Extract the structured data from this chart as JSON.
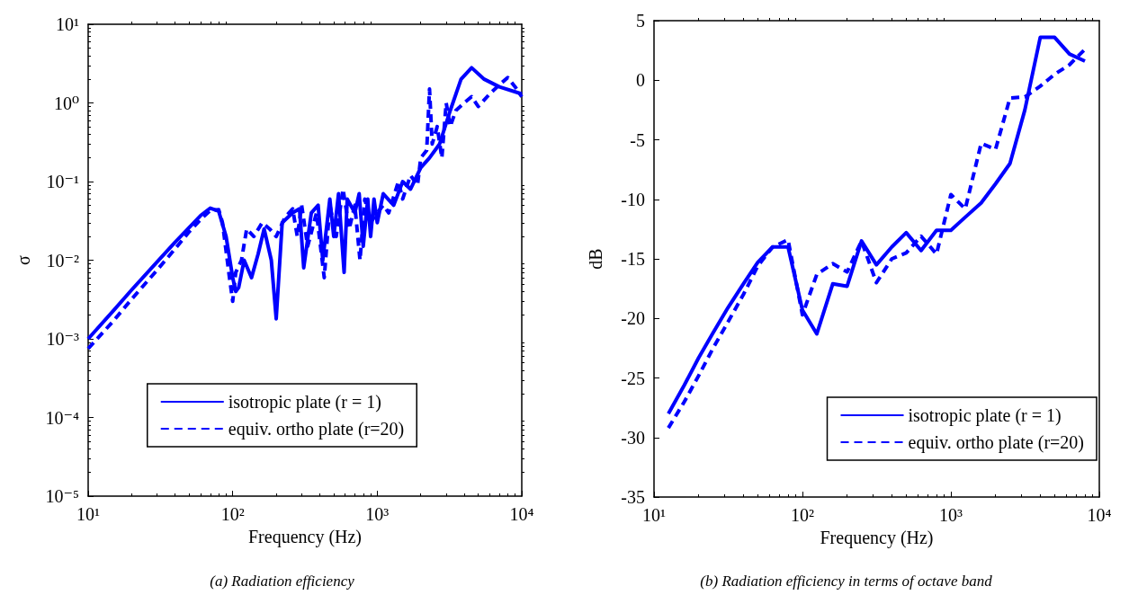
{
  "chart_data": [
    {
      "type": "line",
      "title": "(a) Radiation efficiency",
      "xlabel": "Frequency (Hz)",
      "ylabel": "σ",
      "log": "xy",
      "grid": false,
      "legend": "bottom",
      "marker": "none",
      "xlim": [
        10,
        10000
      ],
      "xticks": [
        {
          "value": 10,
          "label": "10¹"
        },
        {
          "value": 100,
          "label": "10²"
        },
        {
          "value": 1000,
          "label": "10³"
        },
        {
          "value": 10000,
          "label": "10⁴"
        }
      ],
      "ylim": [
        1e-05,
        10
      ],
      "yticks": [
        {
          "value": 1e-05,
          "label": "10⁻⁵"
        },
        {
          "value": 0.0001,
          "label": "10⁻⁴"
        },
        {
          "value": 0.001,
          "label": "10⁻³"
        },
        {
          "value": 0.01,
          "label": "10⁻²"
        },
        {
          "value": 0.1,
          "label": "10⁻¹"
        },
        {
          "value": 1,
          "label": "10⁰"
        },
        {
          "value": 10,
          "label": "10¹"
        }
      ],
      "series": [
        {
          "name": "isotropic plate (r = 1)",
          "color": "#0000ff",
          "line_style": "solid",
          "x": [
            10,
            15,
            20,
            30,
            40,
            50,
            60,
            70,
            80,
            90,
            100,
            105,
            110,
            120,
            135,
            150,
            165,
            185,
            200,
            220,
            260,
            290,
            310,
            350,
            390,
            420,
            470,
            500,
            540,
            590,
            620,
            700,
            750,
            800,
            860,
            900,
            950,
            1000,
            1100,
            1300,
            1500,
            1700,
            2000,
            2300,
            2700,
            3200,
            3800,
            4500,
            5500,
            7000,
            10000
          ],
          "values": [
            0.001,
            0.0023,
            0.0042,
            0.0095,
            0.017,
            0.026,
            0.037,
            0.046,
            0.042,
            0.02,
            0.006,
            0.004,
            0.0045,
            0.01,
            0.006,
            0.012,
            0.025,
            0.01,
            0.0018,
            0.03,
            0.04,
            0.045,
            0.008,
            0.04,
            0.05,
            0.01,
            0.06,
            0.02,
            0.07,
            0.007,
            0.06,
            0.04,
            0.07,
            0.015,
            0.06,
            0.02,
            0.06,
            0.03,
            0.07,
            0.05,
            0.1,
            0.08,
            0.15,
            0.2,
            0.3,
            0.8,
            2,
            2.8,
            2,
            1.6,
            1.3
          ]
        },
        {
          "name": "equiv. ortho plate (r=20)",
          "color": "#0000ff",
          "line_style": "dashed",
          "x": [
            10,
            15,
            20,
            30,
            40,
            50,
            60,
            70,
            80,
            85,
            95,
            100,
            105,
            115,
            125,
            140,
            160,
            180,
            200,
            230,
            260,
            280,
            300,
            330,
            380,
            430,
            470,
            520,
            580,
            640,
            700,
            760,
            820,
            900,
            1000,
            1100,
            1200,
            1400,
            1500,
            1700,
            1900,
            2000,
            2200,
            2300,
            2400,
            2600,
            2800,
            3000,
            3200,
            3500,
            4000,
            4500,
            5000,
            6000,
            7000,
            8000,
            9000,
            10000
          ],
          "values": [
            0.00075,
            0.0017,
            0.0032,
            0.0075,
            0.014,
            0.023,
            0.033,
            0.043,
            0.044,
            0.03,
            0.006,
            0.003,
            0.007,
            0.01,
            0.025,
            0.02,
            0.03,
            0.025,
            0.02,
            0.035,
            0.045,
            0.02,
            0.05,
            0.015,
            0.04,
            0.006,
            0.05,
            0.02,
            0.08,
            0.025,
            0.05,
            0.01,
            0.06,
            0.03,
            0.04,
            0.05,
            0.04,
            0.1,
            0.06,
            0.12,
            0.09,
            0.2,
            0.25,
            1.5,
            0.3,
            0.5,
            0.2,
            1,
            0.5,
            0.8,
            1,
            1.2,
            0.9,
            1.3,
            1.7,
            2.1,
            1.6,
            1.2
          ]
        }
      ]
    },
    {
      "type": "line",
      "title": "(b) Radiation efficiency in terms of octave band",
      "xlabel": "Frequency (Hz)",
      "ylabel": "dB",
      "log": "x",
      "grid": false,
      "legend": "bottom right",
      "marker": "none",
      "xlim": [
        10,
        10000
      ],
      "xticks": [
        {
          "value": 10,
          "label": "10¹"
        },
        {
          "value": 100,
          "label": "10²"
        },
        {
          "value": 1000,
          "label": "10³"
        },
        {
          "value": 10000,
          "label": "10⁴"
        }
      ],
      "ylim": [
        -35,
        5
      ],
      "yticks": [
        -35,
        -30,
        -25,
        -20,
        -15,
        -10,
        -5,
        0,
        5
      ],
      "series": [
        {
          "name": "isotropic plate (r = 1)",
          "color": "#0000ff",
          "line_style": "solid",
          "x": [
            12.5,
            16,
            20,
            25,
            31.5,
            40,
            50,
            63,
            80,
            100,
            125,
            160,
            200,
            250,
            315,
            400,
            500,
            630,
            800,
            1000,
            1250,
            1600,
            2000,
            2500,
            3150,
            4000,
            5000,
            6300,
            8000
          ],
          "values": [
            -28,
            -25.6,
            -23.3,
            -21.2,
            -19.1,
            -17.1,
            -15.3,
            -14,
            -14,
            -19.3,
            -21.3,
            -17.1,
            -17.3,
            -13.5,
            -15.5,
            -14,
            -12.8,
            -14.3,
            -12.6,
            -12.6,
            -11.5,
            -10.3,
            -8.7,
            -7,
            -2.5,
            3.6,
            3.6,
            2.2,
            1.6
          ]
        },
        {
          "name": "equiv. ortho plate (r=20)",
          "color": "#0000ff",
          "line_style": "dashed",
          "x": [
            12.5,
            16,
            20,
            25,
            31.5,
            40,
            50,
            63,
            80,
            100,
            125,
            160,
            200,
            250,
            315,
            400,
            500,
            630,
            800,
            1000,
            1250,
            1600,
            2000,
            2500,
            3150,
            4000,
            5000,
            6300,
            8000
          ],
          "values": [
            -29.2,
            -27,
            -24.8,
            -22.5,
            -20.3,
            -18,
            -15.6,
            -14,
            -13.4,
            -19.7,
            -16.3,
            -15.4,
            -16.1,
            -13.5,
            -17,
            -15,
            -14.5,
            -13.1,
            -14.6,
            -9.6,
            -10.8,
            -5.3,
            -5.8,
            -1.5,
            -1.4,
            -0.5,
            0.5,
            1.3,
            2.6
          ]
        }
      ]
    }
  ]
}
